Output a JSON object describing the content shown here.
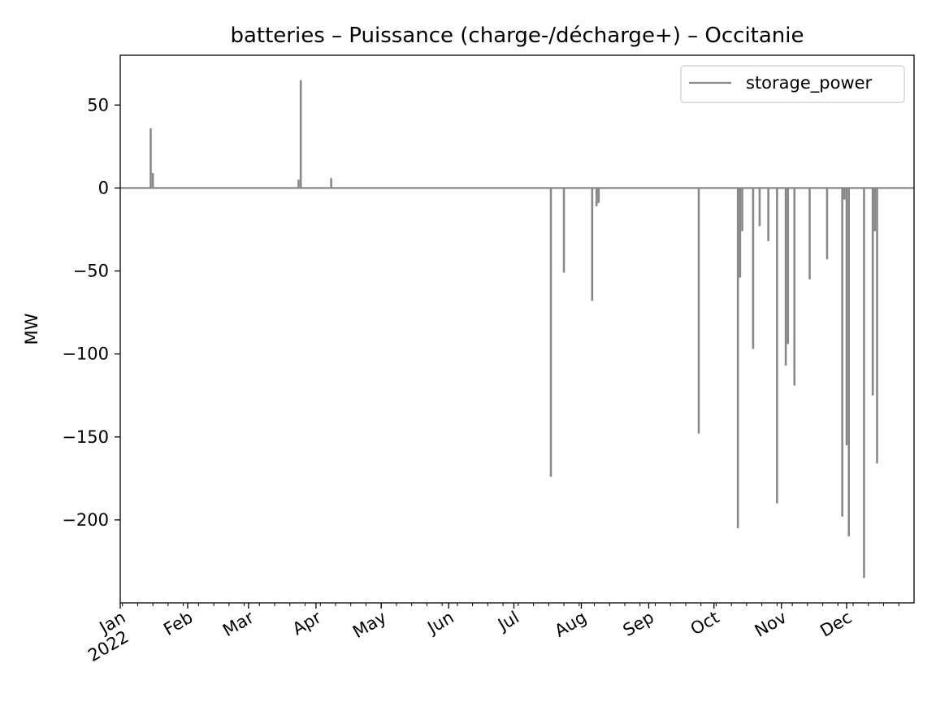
{
  "chart_data": {
    "type": "line",
    "title": "batteries – Puissance (charge-/décharge+) – Occitanie",
    "xlabel": "",
    "ylabel": "MW",
    "xlim": [
      "2022-01-01",
      "2023-01-01"
    ],
    "ylim": [
      -250,
      80
    ],
    "x_ticks": [
      {
        "date": "2022-01-01",
        "label": "Jan",
        "label2": "2022"
      },
      {
        "date": "2022-02-01",
        "label": "Feb"
      },
      {
        "date": "2022-03-01",
        "label": "Mar"
      },
      {
        "date": "2022-04-01",
        "label": "Apr"
      },
      {
        "date": "2022-05-01",
        "label": "May"
      },
      {
        "date": "2022-06-01",
        "label": "Jun"
      },
      {
        "date": "2022-07-01",
        "label": "Jul"
      },
      {
        "date": "2022-08-01",
        "label": "Aug"
      },
      {
        "date": "2022-09-01",
        "label": "Sep"
      },
      {
        "date": "2022-10-01",
        "label": "Oct"
      },
      {
        "date": "2022-11-01",
        "label": "Nov"
      },
      {
        "date": "2022-12-01",
        "label": "Dec"
      }
    ],
    "y_ticks": [
      {
        "value": 50,
        "label": "50"
      },
      {
        "value": 0,
        "label": "0"
      },
      {
        "value": -50,
        "label": "−50"
      },
      {
        "value": -100,
        "label": "−100"
      },
      {
        "value": -150,
        "label": "−150"
      },
      {
        "value": -200,
        "label": "−200"
      }
    ],
    "grid": false,
    "legend": {
      "position": "top-right"
    },
    "series": [
      {
        "name": "storage_power",
        "color": "#888888",
        "baseline": 0,
        "spikes": [
          {
            "date": "2022-01-15",
            "value": 36
          },
          {
            "date": "2022-01-16",
            "value": 9
          },
          {
            "date": "2022-03-24",
            "value": 5
          },
          {
            "date": "2022-03-25",
            "value": 65
          },
          {
            "date": "2022-04-08",
            "value": 6
          },
          {
            "date": "2022-07-18",
            "value": -174
          },
          {
            "date": "2022-07-24",
            "value": -51
          },
          {
            "date": "2022-08-06",
            "value": -68
          },
          {
            "date": "2022-08-08",
            "value": -11
          },
          {
            "date": "2022-08-09",
            "value": -9
          },
          {
            "date": "2022-09-24",
            "value": -148
          },
          {
            "date": "2022-10-12",
            "value": -205
          },
          {
            "date": "2022-10-13",
            "value": -54
          },
          {
            "date": "2022-10-14",
            "value": -26
          },
          {
            "date": "2022-10-19",
            "value": -97
          },
          {
            "date": "2022-10-22",
            "value": -23
          },
          {
            "date": "2022-10-26",
            "value": -32
          },
          {
            "date": "2022-10-30",
            "value": -190
          },
          {
            "date": "2022-11-03",
            "value": -107
          },
          {
            "date": "2022-11-04",
            "value": -94
          },
          {
            "date": "2022-11-07",
            "value": -119
          },
          {
            "date": "2022-11-14",
            "value": -55
          },
          {
            "date": "2022-11-22",
            "value": -43
          },
          {
            "date": "2022-11-29",
            "value": -198
          },
          {
            "date": "2022-11-30",
            "value": -7
          },
          {
            "date": "2022-12-01",
            "value": -155
          },
          {
            "date": "2022-12-02",
            "value": -210
          },
          {
            "date": "2022-12-09",
            "value": -235
          },
          {
            "date": "2022-12-13",
            "value": -125
          },
          {
            "date": "2022-12-14",
            "value": -26
          },
          {
            "date": "2022-12-15",
            "value": -166
          }
        ]
      }
    ]
  }
}
